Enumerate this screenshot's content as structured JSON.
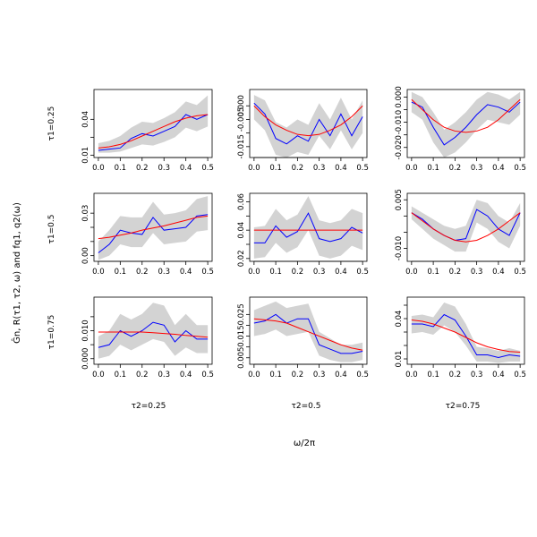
{
  "figure": {
    "ylabel": "Ĝn, R(τ1, τ2, ω) and fq1, q2(ω)",
    "xlabel": "ω/2π",
    "row_labels": [
      "τ1=0.25",
      "τ1=0.5",
      "τ1=0.75"
    ],
    "col_labels": [
      "τ2=0.25",
      "τ2=0.5",
      "τ2=0.75"
    ],
    "colors": {
      "band": "#d3d3d3",
      "estimate": "#0000ff",
      "true": "#ff0000",
      "axes": "#000000"
    }
  },
  "chart_data": [
    {
      "type": "line",
      "row": 0,
      "col": 0,
      "title": "",
      "xlabel": "",
      "ylabel": "",
      "xlim": [
        0,
        0.5
      ],
      "ylim": [
        0.008,
        0.065
      ],
      "xticks": [
        0.0,
        0.1,
        0.2,
        0.3,
        0.4,
        0.5
      ],
      "yticks": [
        0.01,
        0.025,
        0.04
      ],
      "ytick_labels": [
        "0.01",
        "",
        "0.04"
      ],
      "x": [
        0.0,
        0.05,
        0.1,
        0.15,
        0.2,
        0.25,
        0.3,
        0.35,
        0.4,
        0.45,
        0.5
      ],
      "series": [
        {
          "name": "",
          "role": "true",
          "values": [
            0.016,
            0.017,
            0.019,
            0.022,
            0.026,
            0.03,
            0.034,
            0.038,
            0.041,
            0.043,
            0.044
          ]
        },
        {
          "name": "",
          "role": "estimate",
          "values": [
            0.014,
            0.015,
            0.016,
            0.024,
            0.028,
            0.026,
            0.03,
            0.034,
            0.044,
            0.04,
            0.044
          ]
        },
        {
          "name": "",
          "role": "band_upper",
          "values": [
            0.02,
            0.022,
            0.026,
            0.033,
            0.038,
            0.037,
            0.041,
            0.046,
            0.055,
            0.052,
            0.06
          ]
        },
        {
          "name": "",
          "role": "band_lower",
          "values": [
            0.012,
            0.012,
            0.013,
            0.016,
            0.019,
            0.018,
            0.021,
            0.025,
            0.033,
            0.03,
            0.034
          ]
        }
      ]
    },
    {
      "type": "line",
      "row": 0,
      "col": 1,
      "title": "",
      "xlabel": "",
      "ylabel": "",
      "xlim": [
        0,
        0.5
      ],
      "ylim": [
        -0.019,
        0.006
      ],
      "xticks": [
        0.0,
        0.1,
        0.2,
        0.3,
        0.4,
        0.5
      ],
      "yticks": [
        -0.015,
        -0.01,
        -0.005,
        0.0
      ],
      "ytick_labels": [
        "-0.015",
        "",
        "-0.005",
        "0.000"
      ],
      "x": [
        0.0,
        0.05,
        0.1,
        0.15,
        0.2,
        0.25,
        0.3,
        0.35,
        0.4,
        0.45,
        0.5
      ],
      "series": [
        {
          "name": "",
          "role": "true",
          "values": [
            0.0,
            -0.004,
            -0.007,
            -0.009,
            -0.0105,
            -0.011,
            -0.0105,
            -0.009,
            -0.007,
            -0.004,
            0.0
          ]
        },
        {
          "name": "",
          "role": "estimate",
          "values": [
            0.001,
            -0.003,
            -0.012,
            -0.014,
            -0.011,
            -0.013,
            -0.005,
            -0.011,
            -0.003,
            -0.011,
            -0.004
          ]
        },
        {
          "name": "",
          "role": "band_upper",
          "values": [
            0.004,
            0.002,
            -0.006,
            -0.008,
            -0.005,
            -0.007,
            0.001,
            -0.005,
            0.003,
            -0.005,
            0.002
          ]
        },
        {
          "name": "",
          "role": "band_lower",
          "values": [
            -0.005,
            -0.009,
            -0.018,
            -0.019,
            -0.017,
            -0.018,
            -0.011,
            -0.016,
            -0.009,
            -0.016,
            -0.01
          ]
        }
      ]
    },
    {
      "type": "line",
      "row": 0,
      "col": 2,
      "title": "",
      "xlabel": "",
      "ylabel": "",
      "xlim": [
        0,
        0.5
      ],
      "ylim": [
        -0.024,
        0.003
      ],
      "xticks": [
        0.0,
        0.1,
        0.2,
        0.3,
        0.4,
        0.5
      ],
      "yticks": [
        -0.02,
        -0.015,
        -0.01,
        -0.005,
        0.0
      ],
      "ytick_labels": [
        "-0.020",
        "",
        "-0.010",
        "",
        "0.000"
      ],
      "x": [
        0.0,
        0.05,
        0.1,
        0.15,
        0.2,
        0.25,
        0.3,
        0.35,
        0.4,
        0.45,
        0.5
      ],
      "series": [
        {
          "name": "",
          "role": "true",
          "values": [
            -0.001,
            -0.005,
            -0.009,
            -0.012,
            -0.0135,
            -0.014,
            -0.0135,
            -0.012,
            -0.009,
            -0.005,
            -0.001
          ]
        },
        {
          "name": "",
          "role": "estimate",
          "values": [
            -0.002,
            -0.004,
            -0.012,
            -0.019,
            -0.016,
            -0.012,
            -0.007,
            -0.003,
            -0.004,
            -0.006,
            -0.002
          ]
        },
        {
          "name": "",
          "role": "band_upper",
          "values": [
            0.002,
            0.0,
            -0.006,
            -0.013,
            -0.01,
            -0.006,
            -0.001,
            0.002,
            0.001,
            -0.001,
            0.002
          ]
        },
        {
          "name": "",
          "role": "band_lower",
          "values": [
            -0.006,
            -0.009,
            -0.018,
            -0.024,
            -0.022,
            -0.018,
            -0.013,
            -0.009,
            -0.01,
            -0.011,
            -0.007
          ]
        }
      ]
    },
    {
      "type": "line",
      "row": 1,
      "col": 0,
      "title": "",
      "xlabel": "",
      "ylabel": "",
      "xlim": [
        0,
        0.5
      ],
      "ylim": [
        -0.004,
        0.044
      ],
      "xticks": [
        0.0,
        0.1,
        0.2,
        0.3,
        0.4,
        0.5
      ],
      "yticks": [
        0.0,
        0.01,
        0.02,
        0.03
      ],
      "ytick_labels": [
        "0.00",
        "",
        "",
        "0.03"
      ],
      "x": [
        0.0,
        0.05,
        0.1,
        0.15,
        0.2,
        0.25,
        0.3,
        0.35,
        0.4,
        0.45,
        0.5
      ],
      "series": [
        {
          "name": "",
          "role": "true",
          "values": [
            0.012,
            0.013,
            0.0145,
            0.016,
            0.018,
            0.0195,
            0.021,
            0.023,
            0.025,
            0.027,
            0.028
          ]
        },
        {
          "name": "",
          "role": "estimate",
          "values": [
            0.002,
            0.008,
            0.018,
            0.016,
            0.015,
            0.027,
            0.018,
            0.019,
            0.02,
            0.028,
            0.029
          ]
        },
        {
          "name": "",
          "role": "band_upper",
          "values": [
            0.01,
            0.018,
            0.028,
            0.027,
            0.027,
            0.038,
            0.029,
            0.03,
            0.032,
            0.04,
            0.042
          ]
        },
        {
          "name": "",
          "role": "band_lower",
          "values": [
            -0.003,
            0.0,
            0.008,
            0.006,
            0.006,
            0.016,
            0.008,
            0.009,
            0.01,
            0.017,
            0.018
          ]
        }
      ]
    },
    {
      "type": "line",
      "row": 1,
      "col": 1,
      "title": "",
      "xlabel": "",
      "ylabel": "",
      "xlim": [
        0,
        0.5
      ],
      "ylim": [
        0.018,
        0.066
      ],
      "xticks": [
        0.0,
        0.1,
        0.2,
        0.3,
        0.4,
        0.5
      ],
      "yticks": [
        0.02,
        0.03,
        0.04,
        0.05,
        0.06
      ],
      "ytick_labels": [
        "0.02",
        "",
        "0.04",
        "",
        "0.06"
      ],
      "x": [
        0.0,
        0.05,
        0.1,
        0.15,
        0.2,
        0.25,
        0.3,
        0.35,
        0.4,
        0.45,
        0.5
      ],
      "series": [
        {
          "name": "",
          "role": "true",
          "values": [
            0.04,
            0.04,
            0.04,
            0.04,
            0.04,
            0.04,
            0.04,
            0.04,
            0.04,
            0.04,
            0.04
          ]
        },
        {
          "name": "",
          "role": "estimate",
          "values": [
            0.031,
            0.031,
            0.043,
            0.035,
            0.039,
            0.052,
            0.034,
            0.032,
            0.034,
            0.042,
            0.038
          ]
        },
        {
          "name": "",
          "role": "band_upper",
          "values": [
            0.042,
            0.043,
            0.055,
            0.047,
            0.051,
            0.064,
            0.047,
            0.045,
            0.047,
            0.055,
            0.052
          ]
        },
        {
          "name": "",
          "role": "band_lower",
          "values": [
            0.02,
            0.021,
            0.031,
            0.024,
            0.028,
            0.04,
            0.022,
            0.02,
            0.022,
            0.029,
            0.026
          ]
        }
      ]
    },
    {
      "type": "line",
      "row": 1,
      "col": 2,
      "title": "",
      "xlabel": "",
      "ylabel": "",
      "xlim": [
        0,
        0.5
      ],
      "ylim": [
        -0.014,
        0.007
      ],
      "xticks": [
        0.0,
        0.1,
        0.2,
        0.3,
        0.4,
        0.5
      ],
      "yticks": [
        -0.01,
        -0.005,
        0.0,
        0.005
      ],
      "ytick_labels": [
        "-0.010",
        "",
        "",
        "0.005"
      ],
      "x": [
        0.0,
        0.05,
        0.1,
        0.15,
        0.2,
        0.25,
        0.3,
        0.35,
        0.4,
        0.45,
        0.5
      ],
      "series": [
        {
          "name": "",
          "role": "true",
          "values": [
            0.001,
            -0.0015,
            -0.004,
            -0.006,
            -0.0075,
            -0.008,
            -0.0075,
            -0.006,
            -0.004,
            -0.0015,
            0.001
          ]
        },
        {
          "name": "",
          "role": "estimate",
          "values": [
            0.001,
            -0.001,
            -0.004,
            -0.006,
            -0.0075,
            -0.007,
            0.002,
            0.0,
            -0.004,
            -0.006,
            0.001
          ]
        },
        {
          "name": "",
          "role": "band_upper",
          "values": [
            0.003,
            0.001,
            -0.001,
            -0.003,
            -0.004,
            -0.003,
            0.005,
            0.004,
            0.0,
            -0.002,
            0.004
          ]
        },
        {
          "name": "",
          "role": "band_lower",
          "values": [
            -0.001,
            -0.004,
            -0.007,
            -0.009,
            -0.011,
            -0.011,
            -0.002,
            -0.004,
            -0.008,
            -0.01,
            -0.003
          ]
        }
      ]
    },
    {
      "type": "line",
      "row": 2,
      "col": 0,
      "title": "",
      "xlabel": "",
      "ylabel": "",
      "xlim": [
        0,
        0.5
      ],
      "ylim": [
        -0.002,
        0.022
      ],
      "xticks": [
        0.0,
        0.1,
        0.2,
        0.3,
        0.4,
        0.5
      ],
      "yticks": [
        0.0,
        0.005,
        0.01,
        0.015
      ],
      "ytick_labels": [
        "0.000",
        "",
        "0.010",
        ""
      ],
      "x": [
        0.0,
        0.05,
        0.1,
        0.15,
        0.2,
        0.25,
        0.3,
        0.35,
        0.4,
        0.45,
        0.5
      ],
      "series": [
        {
          "name": "",
          "role": "true",
          "values": [
            0.0095,
            0.0095,
            0.0095,
            0.0095,
            0.0095,
            0.0093,
            0.009,
            0.0087,
            0.0083,
            0.008,
            0.0077
          ]
        },
        {
          "name": "",
          "role": "estimate",
          "values": [
            0.004,
            0.005,
            0.01,
            0.008,
            0.01,
            0.013,
            0.012,
            0.006,
            0.01,
            0.007,
            0.007
          ]
        },
        {
          "name": "",
          "role": "band_upper",
          "values": [
            0.008,
            0.01,
            0.016,
            0.014,
            0.016,
            0.02,
            0.019,
            0.012,
            0.016,
            0.012,
            0.012
          ]
        },
        {
          "name": "",
          "role": "band_lower",
          "values": [
            0.0,
            0.001,
            0.005,
            0.003,
            0.005,
            0.007,
            0.006,
            0.001,
            0.004,
            0.002,
            0.002
          ]
        }
      ]
    },
    {
      "type": "line",
      "row": 2,
      "col": 1,
      "title": "",
      "xlabel": "",
      "ylabel": "",
      "xlim": [
        0,
        0.5
      ],
      "ylim": [
        0.002,
        0.033
      ],
      "xticks": [
        0.0,
        0.1,
        0.2,
        0.3,
        0.4,
        0.5
      ],
      "yticks": [
        0.005,
        0.01,
        0.015,
        0.02,
        0.025
      ],
      "ytick_labels": [
        "0.005",
        "",
        "0.015",
        "",
        "0.025"
      ],
      "x": [
        0.0,
        0.05,
        0.1,
        0.15,
        0.2,
        0.25,
        0.3,
        0.35,
        0.4,
        0.45,
        0.5
      ],
      "series": [
        {
          "name": "",
          "role": "true",
          "values": [
            0.023,
            0.0225,
            0.022,
            0.021,
            0.019,
            0.017,
            0.015,
            0.013,
            0.011,
            0.0095,
            0.0085
          ]
        },
        {
          "name": "",
          "role": "estimate",
          "values": [
            0.021,
            0.022,
            0.025,
            0.021,
            0.023,
            0.023,
            0.011,
            0.009,
            0.007,
            0.007,
            0.008
          ]
        },
        {
          "name": "",
          "role": "band_upper",
          "values": [
            0.027,
            0.029,
            0.031,
            0.028,
            0.029,
            0.03,
            0.017,
            0.014,
            0.011,
            0.011,
            0.012
          ]
        },
        {
          "name": "",
          "role": "band_lower",
          "values": [
            0.015,
            0.016,
            0.018,
            0.015,
            0.016,
            0.017,
            0.006,
            0.004,
            0.003,
            0.003,
            0.004
          ]
        }
      ]
    },
    {
      "type": "line",
      "row": 2,
      "col": 2,
      "title": "",
      "xlabel": "",
      "ylabel": "",
      "xlim": [
        0,
        0.5
      ],
      "ylim": [
        0.006,
        0.056
      ],
      "xticks": [
        0.0,
        0.1,
        0.2,
        0.3,
        0.4,
        0.5
      ],
      "yticks": [
        0.01,
        0.02,
        0.03,
        0.04,
        0.05
      ],
      "ytick_labels": [
        "0.01",
        "",
        "",
        "0.04",
        ""
      ],
      "x": [
        0.0,
        0.05,
        0.1,
        0.15,
        0.2,
        0.25,
        0.3,
        0.35,
        0.4,
        0.45,
        0.5
      ],
      "series": [
        {
          "name": "",
          "role": "true",
          "values": [
            0.039,
            0.038,
            0.036,
            0.033,
            0.03,
            0.026,
            0.022,
            0.019,
            0.017,
            0.0155,
            0.015
          ]
        },
        {
          "name": "",
          "role": "estimate",
          "values": [
            0.036,
            0.036,
            0.034,
            0.043,
            0.039,
            0.027,
            0.013,
            0.013,
            0.011,
            0.013,
            0.012
          ]
        },
        {
          "name": "",
          "role": "band_upper",
          "values": [
            0.042,
            0.043,
            0.041,
            0.052,
            0.049,
            0.036,
            0.019,
            0.018,
            0.016,
            0.018,
            0.016
          ]
        },
        {
          "name": "",
          "role": "band_lower",
          "values": [
            0.029,
            0.03,
            0.028,
            0.035,
            0.03,
            0.02,
            0.008,
            0.008,
            0.007,
            0.008,
            0.008
          ]
        }
      ]
    }
  ]
}
